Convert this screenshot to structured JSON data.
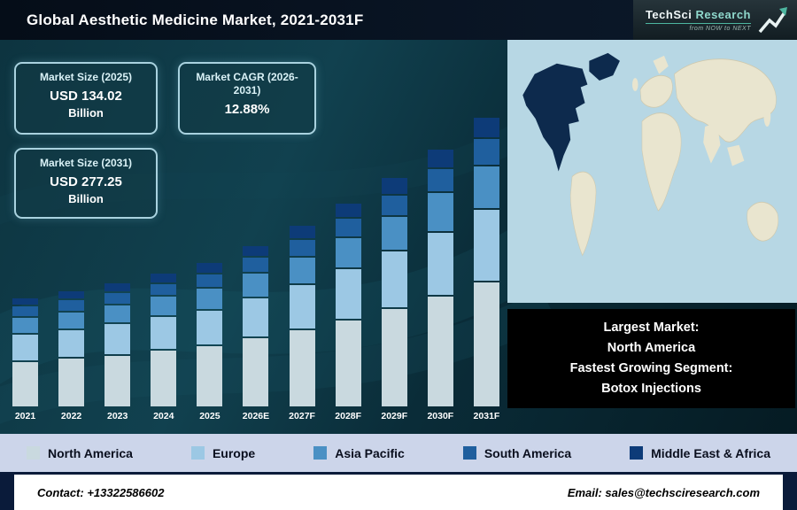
{
  "header": {
    "title": "Global Aesthetic Medicine Market, 2021-2031F",
    "logo": {
      "brand_primary": "TechSci",
      "brand_secondary": "Research",
      "tagline": "from NOW to NEXT"
    }
  },
  "stats": [
    {
      "label": "Market Size (2025)",
      "value": "USD 134.02",
      "unit": "Billion"
    },
    {
      "label": "Market CAGR (2026-2031)",
      "value": "12.88%",
      "unit": ""
    },
    {
      "label": "Market Size (2031)",
      "value": "USD 277.25",
      "unit": "Billion"
    }
  ],
  "chart_data": {
    "type": "bar",
    "stacked": true,
    "title": "Global Aesthetic Medicine Market, 2021-2031F",
    "unit": "USD Billion",
    "categories": [
      "2021",
      "2022",
      "2023",
      "2024",
      "2025",
      "2026E",
      "2027F",
      "2028F",
      "2029F",
      "2030F",
      "2031F"
    ],
    "series": [
      {
        "name": "North America",
        "color": "#c9d9df",
        "values": [
          44,
          47,
          50,
          55,
          59,
          67,
          75,
          85,
          96,
          108,
          122
        ]
      },
      {
        "name": "Europe",
        "color": "#9cc8e4",
        "values": [
          25,
          26,
          29,
          31,
          33.5,
          38,
          43,
          48,
          54.5,
          61.5,
          69.5
        ]
      },
      {
        "name": "Asia Pacific",
        "color": "#4a90c4",
        "values": [
          15,
          16,
          17,
          18.5,
          20,
          22.5,
          25.5,
          29,
          32.5,
          37,
          41.5
        ]
      },
      {
        "name": "South America",
        "color": "#1f5f9e",
        "values": [
          9,
          10,
          10,
          11,
          12,
          13.5,
          15.5,
          17.5,
          19.5,
          22,
          25
        ]
      },
      {
        "name": "Middle East & Africa",
        "color": "#0d3b78",
        "values": [
          6,
          7,
          8.5,
          8.5,
          9.52,
          10.3,
          11.8,
          13.3,
          15.1,
          17.1,
          19.25
        ]
      }
    ],
    "totals": [
      99,
      106,
      114.5,
      124,
      134.02,
      151.3,
      170.8,
      192.8,
      217.6,
      245.6,
      277.25
    ],
    "ylim": [
      0,
      280
    ],
    "grid": false,
    "legend_position": "bottom",
    "annotations": [
      "Market Size (2025): USD 134.02 Billion",
      "Market CAGR (2026-2031): 12.88%",
      "Market Size (2031): USD 277.25 Billion"
    ]
  },
  "note": {
    "lines": [
      "Largest Market:",
      "North America",
      "Fastest Growing Segment:",
      "Botox Injections"
    ]
  },
  "footer": {
    "contact": "Contact: +13322586602",
    "email": "Email: sales@techsciresearch.com"
  }
}
